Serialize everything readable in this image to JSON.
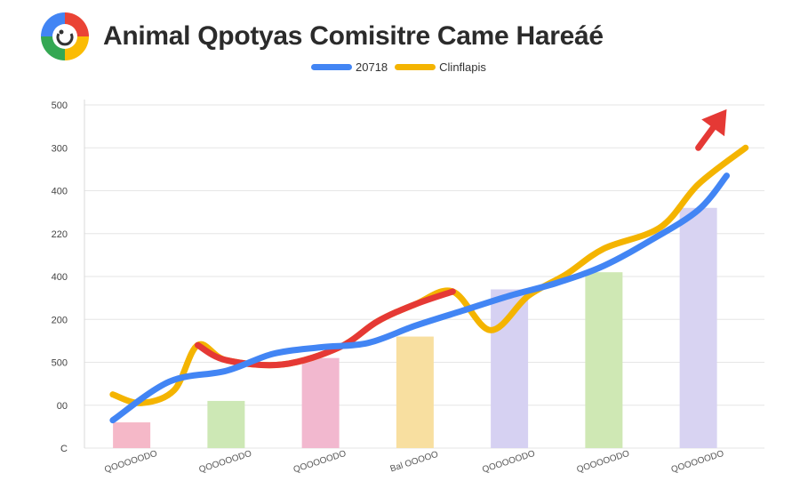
{
  "header": {
    "title": "Animal Qpotyas Comisitre Came Hareáé",
    "logo_colors": [
      "#ea4335",
      "#fbbc04",
      "#34a853",
      "#4285f4"
    ]
  },
  "colors": {
    "blue": "#4285f4",
    "yellow": "#f4b400",
    "red": "#e53935",
    "grid": "#e6e6e6"
  },
  "chart_data": {
    "type": "line",
    "legend": [
      "20718",
      "Clinflapis"
    ],
    "legend_placement": "top-center",
    "grid": true,
    "y_tick_labels": [
      "C",
      "00",
      "500",
      "200",
      "400",
      "220",
      "400",
      "300",
      "500"
    ],
    "x_tick_labels": [
      "QOOOOODO",
      "QOOOOODO",
      "QOOOOODO",
      "Bal OOOOO",
      "QOOOOODO",
      "QOOOOODO",
      "QOOOOODO"
    ],
    "x": [
      1,
      2,
      3,
      4,
      5,
      6,
      7
    ],
    "bars": {
      "values": [
        0.6,
        1.1,
        2.1,
        2.6,
        3.7,
        4.1,
        5.6
      ],
      "colors": [
        "#f5b8c8",
        "#cde8b5",
        "#f2b8cf",
        "#f8dfa0",
        "#d6d1f2",
        "#cfe8b4",
        "#d8d3f2"
      ]
    },
    "series": [
      {
        "name": "20718",
        "color": "#4285f4",
        "values": [
          [
            0.8,
            0.65
          ],
          [
            1.4,
            1.55
          ],
          [
            2.0,
            1.8
          ],
          [
            2.5,
            2.2
          ],
          [
            3.0,
            2.35
          ],
          [
            3.5,
            2.45
          ],
          [
            4.0,
            2.85
          ],
          [
            4.5,
            3.2
          ],
          [
            5.0,
            3.55
          ],
          [
            5.5,
            3.85
          ],
          [
            6.0,
            4.25
          ],
          [
            6.5,
            4.85
          ],
          [
            7.0,
            5.55
          ],
          [
            7.3,
            6.35
          ]
        ]
      },
      {
        "name": "Clinflapis",
        "color": "#f4b400",
        "values": [
          [
            0.8,
            1.25
          ],
          [
            1.1,
            1.05
          ],
          [
            1.45,
            1.35
          ],
          [
            1.7,
            2.4
          ],
          [
            2.0,
            2.05
          ],
          [
            2.6,
            1.95
          ],
          [
            3.2,
            2.35
          ],
          [
            3.6,
            2.95
          ],
          [
            4.0,
            3.35
          ],
          [
            4.4,
            3.65
          ],
          [
            4.8,
            2.75
          ],
          [
            5.2,
            3.55
          ],
          [
            5.6,
            4.05
          ],
          [
            6.0,
            4.65
          ],
          [
            6.6,
            5.15
          ],
          [
            7.0,
            6.15
          ],
          [
            7.5,
            7.0
          ]
        ]
      }
    ],
    "highlight": {
      "color": "#e53935",
      "values": [
        [
          1.7,
          2.4
        ],
        [
          2.0,
          2.05
        ],
        [
          2.6,
          1.95
        ],
        [
          3.2,
          2.35
        ],
        [
          3.6,
          2.95
        ],
        [
          4.0,
          3.35
        ],
        [
          4.4,
          3.65
        ]
      ],
      "arrow": [
        [
          7.0,
          7.0
        ],
        [
          7.3,
          7.9
        ]
      ]
    },
    "xlim": [
      0.5,
      7.7
    ],
    "ylim": [
      0,
      8
    ]
  }
}
